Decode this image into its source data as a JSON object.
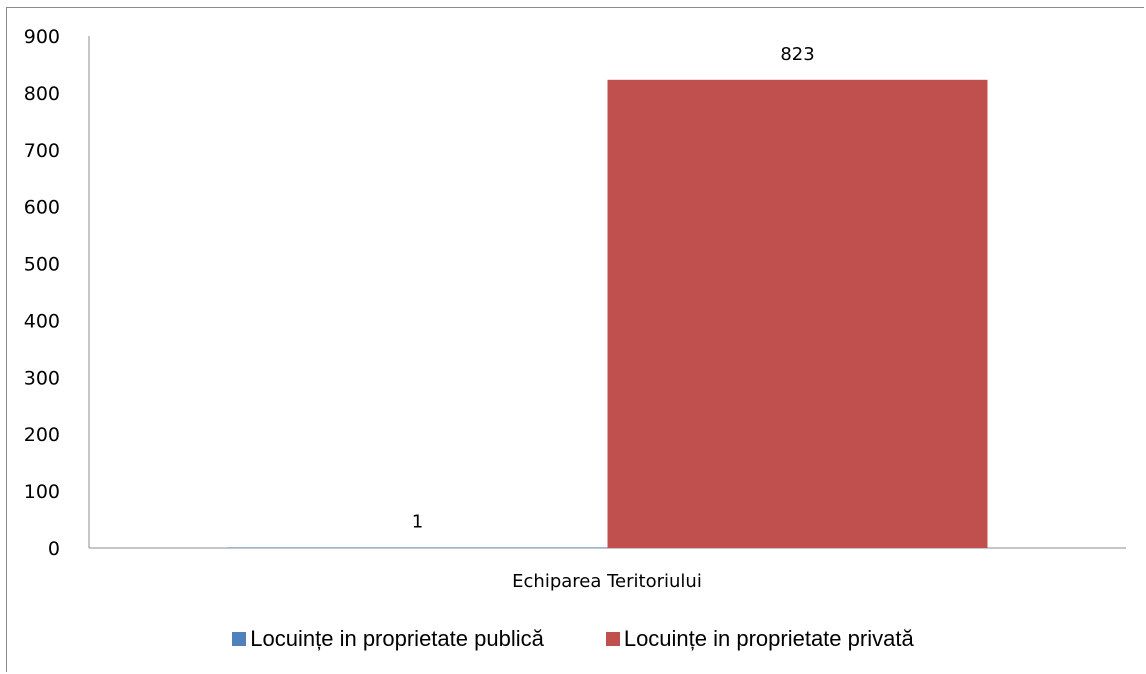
{
  "chart_data": {
    "type": "bar",
    "categories": [
      "Echiparea Teritoriului"
    ],
    "series": [
      {
        "name": "Locuințe in proprietate publică",
        "values": [
          1
        ],
        "color": "#4F81BD"
      },
      {
        "name": "Locuințe in proprietate privată",
        "values": [
          823
        ],
        "color": "#C0504D"
      }
    ],
    "ylim": [
      0,
      900
    ],
    "yticks": [
      0,
      100,
      200,
      300,
      400,
      500,
      600,
      700,
      800,
      900
    ],
    "legend_position": "bottom",
    "grid": false
  }
}
